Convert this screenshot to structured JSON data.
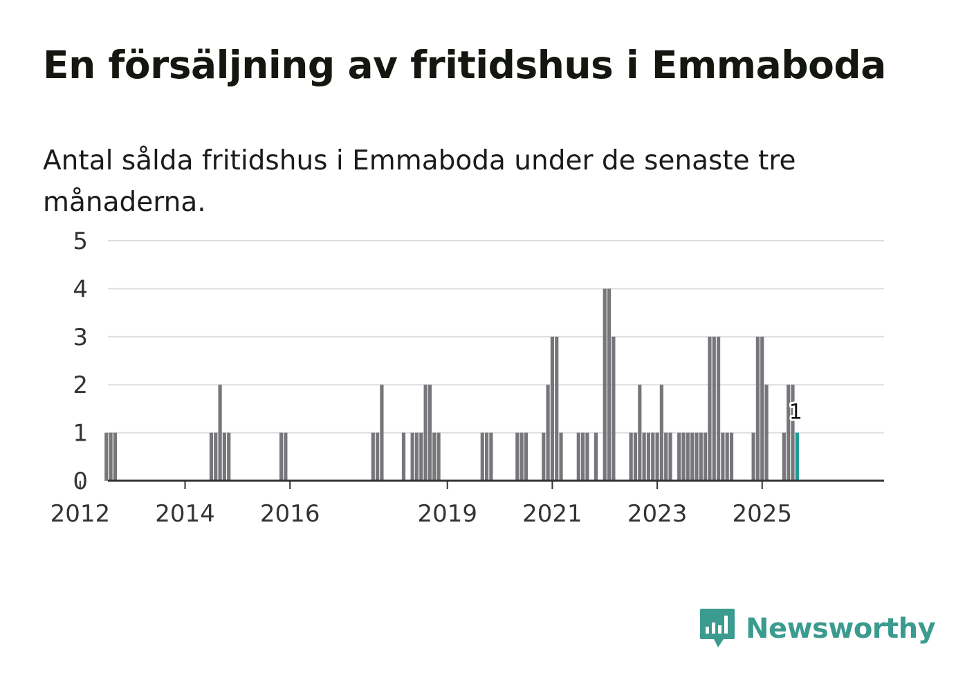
{
  "title": "En försäljning av fritidshus i Emmaboda",
  "subtitle": "Antal sålda fritidshus i Emmaboda under de senaste tre månaderna.",
  "brand": {
    "name": "Newsworthy",
    "color": "#3b9b8f",
    "icon": "bar-chart-speech-bubble-icon"
  },
  "colors": {
    "bar": "#77767b",
    "highlight": "#1a9a93",
    "grid": "#dddddd",
    "axis": "#333333"
  },
  "chart_data": {
    "type": "bar",
    "x_start": "2011-01",
    "ylim": [
      0,
      5
    ],
    "yticks": [
      0,
      1,
      2,
      3,
      4,
      5
    ],
    "xticks": [
      "2012",
      "2014",
      "2016",
      "2019",
      "2021",
      "2023",
      "2025"
    ],
    "grid": true,
    "highlight_label": "1",
    "bars": [
      {
        "month": "2012-07",
        "value": 1
      },
      {
        "month": "2012-08",
        "value": 1
      },
      {
        "month": "2012-09",
        "value": 1
      },
      {
        "month": "2014-07",
        "value": 1
      },
      {
        "month": "2014-08",
        "value": 1
      },
      {
        "month": "2014-09",
        "value": 2
      },
      {
        "month": "2014-10",
        "value": 1
      },
      {
        "month": "2014-11",
        "value": 1
      },
      {
        "month": "2015-11",
        "value": 1
      },
      {
        "month": "2015-12",
        "value": 1
      },
      {
        "month": "2017-08",
        "value": 1
      },
      {
        "month": "2017-09",
        "value": 1
      },
      {
        "month": "2017-10",
        "value": 2
      },
      {
        "month": "2018-03",
        "value": 1
      },
      {
        "month": "2018-05",
        "value": 1
      },
      {
        "month": "2018-06",
        "value": 1
      },
      {
        "month": "2018-07",
        "value": 1
      },
      {
        "month": "2018-08",
        "value": 2
      },
      {
        "month": "2018-09",
        "value": 2
      },
      {
        "month": "2018-10",
        "value": 1
      },
      {
        "month": "2018-11",
        "value": 1
      },
      {
        "month": "2019-09",
        "value": 1
      },
      {
        "month": "2019-10",
        "value": 1
      },
      {
        "month": "2019-11",
        "value": 1
      },
      {
        "month": "2020-05",
        "value": 1
      },
      {
        "month": "2020-06",
        "value": 1
      },
      {
        "month": "2020-07",
        "value": 1
      },
      {
        "month": "2020-11",
        "value": 1
      },
      {
        "month": "2020-12",
        "value": 2
      },
      {
        "month": "2021-01",
        "value": 3
      },
      {
        "month": "2021-02",
        "value": 3
      },
      {
        "month": "2021-03",
        "value": 1
      },
      {
        "month": "2021-07",
        "value": 1
      },
      {
        "month": "2021-08",
        "value": 1
      },
      {
        "month": "2021-09",
        "value": 1
      },
      {
        "month": "2021-11",
        "value": 1
      },
      {
        "month": "2022-01",
        "value": 4
      },
      {
        "month": "2022-02",
        "value": 4
      },
      {
        "month": "2022-03",
        "value": 3
      },
      {
        "month": "2022-07",
        "value": 1
      },
      {
        "month": "2022-08",
        "value": 1
      },
      {
        "month": "2022-09",
        "value": 2
      },
      {
        "month": "2022-10",
        "value": 1
      },
      {
        "month": "2022-11",
        "value": 1
      },
      {
        "month": "2022-12",
        "value": 1
      },
      {
        "month": "2023-01",
        "value": 1
      },
      {
        "month": "2023-02",
        "value": 2
      },
      {
        "month": "2023-03",
        "value": 1
      },
      {
        "month": "2023-04",
        "value": 1
      },
      {
        "month": "2023-06",
        "value": 1
      },
      {
        "month": "2023-07",
        "value": 1
      },
      {
        "month": "2023-08",
        "value": 1
      },
      {
        "month": "2023-09",
        "value": 1
      },
      {
        "month": "2023-10",
        "value": 1
      },
      {
        "month": "2023-11",
        "value": 1
      },
      {
        "month": "2023-12",
        "value": 1
      },
      {
        "month": "2024-01",
        "value": 3
      },
      {
        "month": "2024-02",
        "value": 3
      },
      {
        "month": "2024-03",
        "value": 3
      },
      {
        "month": "2024-04",
        "value": 1
      },
      {
        "month": "2024-05",
        "value": 1
      },
      {
        "month": "2024-06",
        "value": 1
      },
      {
        "month": "2024-11",
        "value": 1
      },
      {
        "month": "2024-12",
        "value": 3
      },
      {
        "month": "2025-01",
        "value": 3
      },
      {
        "month": "2025-02",
        "value": 2
      },
      {
        "month": "2025-06",
        "value": 1
      },
      {
        "month": "2025-07",
        "value": 2
      },
      {
        "month": "2025-08",
        "value": 2
      },
      {
        "month": "2025-09",
        "value": 1,
        "highlight": true
      }
    ]
  }
}
